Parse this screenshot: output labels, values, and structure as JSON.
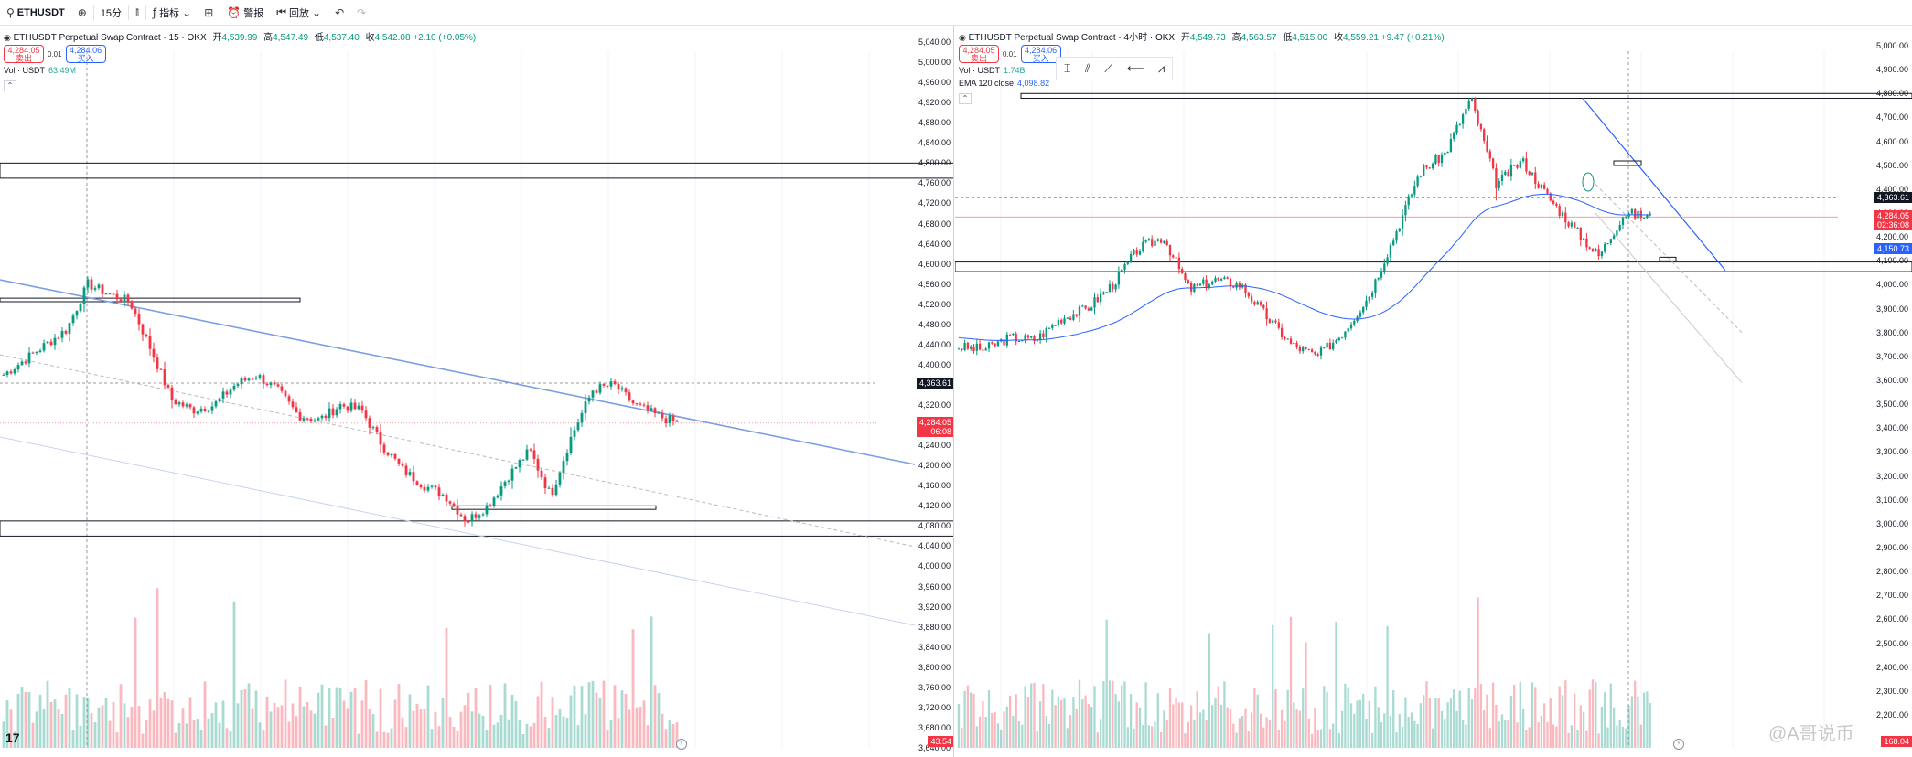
{
  "toolbar": {
    "symbol": "ETHUSDT",
    "interval": "15分",
    "indicators": "指标",
    "alerts": "警报",
    "replay": "回放"
  },
  "left": {
    "title": "ETHUSDT Perpetual Swap Contract · 15 · OKX",
    "ohlc": {
      "o_label": "开",
      "o": "4,539.99",
      "h_label": "高",
      "h": "4,547.49",
      "l_label": "低",
      "l": "4,537.40",
      "c_label": "收",
      "c": "4,542.08",
      "chg": "+2.10 (+0.05%)"
    },
    "sell_price": "4,284.05",
    "sell_label": "卖出",
    "spread": "0.01",
    "buy_price": "4,284.06",
    "buy_label": "买入",
    "vol_label": "Vol · USDT",
    "vol_value": "63.49M",
    "axis_ticks": [
      "5,040.00",
      "5,000.00",
      "4,960.00",
      "4,920.00",
      "4,880.00",
      "4,840.00",
      "4,800.00",
      "4,760.00",
      "4,720.00",
      "4,680.00",
      "4,640.00",
      "4,600.00",
      "4,560.00",
      "4,520.00",
      "4,480.00",
      "4,440.00",
      "4,400.00",
      "4,360.00",
      "4,320.00",
      "4,280.00",
      "4,240.00",
      "4,200.00",
      "4,160.00",
      "4,120.00",
      "4,080.00",
      "4,040.00",
      "4,000.00",
      "3,960.00",
      "3,920.00",
      "3,880.00",
      "3,840.00",
      "3,800.00",
      "3,760.00",
      "3,720.00",
      "3,680.00",
      "3,640.00"
    ],
    "tag_cross": "4,363.61",
    "tag_last": "4,284.05",
    "tag_last_time": "06:08",
    "tag_vol": "43.54"
  },
  "right": {
    "title": "ETHUSDT Perpetual Swap Contract · 4小时 · OKX",
    "ohlc": {
      "o_label": "开",
      "o": "4,549.73",
      "h_label": "高",
      "h": "4,563.57",
      "l_label": "低",
      "l": "4,515.00",
      "c_label": "收",
      "c": "4,559.21",
      "chg": "+9.47 (+0.21%)"
    },
    "sell_price": "4,284.05",
    "sell_label": "卖出",
    "spread": "0.01",
    "buy_price": "4,284.06",
    "buy_label": "买入",
    "vol_label": "Vol · USDT",
    "vol_value": "1.74B",
    "ema_label": "EMA 120 close",
    "ema_value": "4,098.82",
    "axis_ticks": [
      "5,000.00",
      "4,900.00",
      "4,800.00",
      "4,700.00",
      "4,600.00",
      "4,500.00",
      "4,400.00",
      "4,300.00",
      "4,200.00",
      "4,100.00",
      "4,000.00",
      "3,900.00",
      "3,800.00",
      "3,700.00",
      "3,600.00",
      "3,500.00",
      "3,400.00",
      "3,300.00",
      "3,200.00",
      "3,100.00",
      "3,000.00",
      "2,900.00",
      "2,800.00",
      "2,700.00",
      "2,600.00",
      "2,500.00",
      "2,400.00",
      "2,300.00",
      "2,200.00"
    ],
    "tag_cross": "4,363.61",
    "tag_last": "4,284.05",
    "tag_last_time": "02:36:08",
    "tag_ema": "4,150.73",
    "tag_vol": "168.04"
  },
  "watermark": "@A哥说币",
  "colors": {
    "up": "#089981",
    "down": "#f23645",
    "line": "#2962ff",
    "grid": "#f0f3fa"
  }
}
